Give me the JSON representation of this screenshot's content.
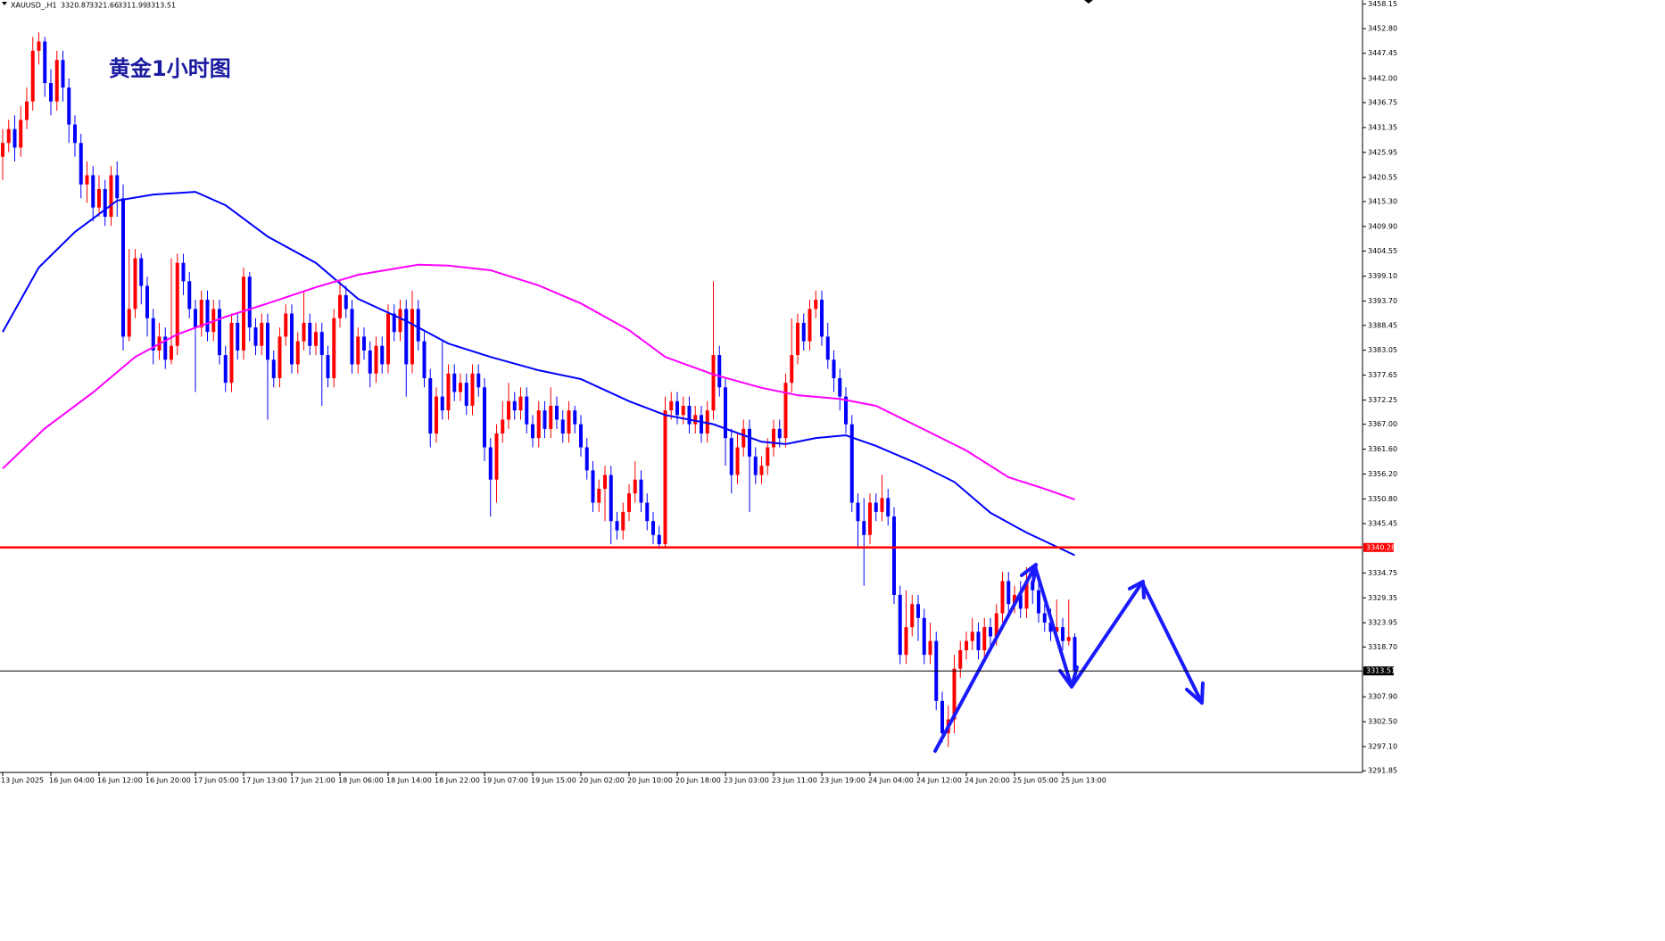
{
  "chart_data": {
    "type": "candlestick",
    "title": "黄金1小时图",
    "symbol": "XAUUSD_,H1",
    "bull_color": "#ff0000",
    "bear_color": "#0000ff",
    "categories": [
      "13 Jun 2025",
      null,
      null,
      null,
      null,
      null,
      null,
      null,
      "16 Jun 04:00",
      null,
      null,
      null,
      null,
      null,
      null,
      null,
      "16 Jun 12:00",
      null,
      null,
      null,
      null,
      null,
      null,
      null,
      "16 Jun 20:00",
      null,
      null,
      null,
      null,
      null,
      null,
      null,
      "17 Jun 05:00",
      null,
      null,
      null,
      null,
      null,
      null,
      null,
      "17 Jun 13:00",
      null,
      null,
      null,
      null,
      null,
      null,
      null,
      "17 Jun 21:00",
      null,
      null,
      null,
      null,
      null,
      null,
      null,
      "18 Jun 06:00",
      null,
      null,
      null,
      null,
      null,
      null,
      null,
      "18 Jun 14:00",
      null,
      null,
      null,
      null,
      null,
      null,
      null,
      "18 Jun 22:00",
      null,
      null,
      null,
      null,
      null,
      null,
      null,
      "19 Jun 07:00",
      null,
      null,
      null,
      null,
      null,
      null,
      null,
      "19 Jun 15:00",
      null,
      null,
      null,
      null,
      null,
      null,
      null,
      "20 Jun 02:00",
      null,
      null,
      null,
      null,
      null,
      null,
      null,
      "20 Jun 10:00",
      null,
      null,
      null,
      null,
      null,
      null,
      null,
      "20 Jun 18:00",
      null,
      null,
      null,
      null,
      null,
      null,
      null,
      "23 Jun 03:00",
      null,
      null,
      null,
      null,
      null,
      null,
      null,
      "23 Jun 11:00",
      null,
      null,
      null,
      null,
      null,
      null,
      null,
      "23 Jun 19:00",
      null,
      null,
      null,
      null,
      null,
      null,
      null,
      "24 Jun 04:00",
      null,
      null,
      null,
      null,
      null,
      null,
      null,
      "24 Jun 12:00",
      null,
      null,
      null,
      null,
      null,
      null,
      null,
      "24 Jun 20:00",
      null,
      null,
      null,
      null,
      null,
      null,
      null,
      "25 Jun 05:00",
      null,
      null,
      null,
      null,
      null,
      null,
      null,
      "25 Jun 13:00",
      null,
      null
    ],
    "open": [
      3425,
      3428,
      3431,
      3427,
      3433,
      3437,
      3448,
      3450,
      3441,
      3437,
      3446,
      3440,
      3432,
      3428,
      3419,
      3421,
      3414,
      3418,
      3412,
      3421,
      3416,
      3386,
      3392,
      3403,
      3397,
      3390,
      3383,
      3386,
      3381,
      3384,
      3402,
      3398,
      3392,
      3388,
      3394,
      3387,
      3392,
      3382,
      3376,
      3389,
      3383,
      3399,
      3388,
      3384,
      3389,
      3381,
      3377,
      3386,
      3391,
      3380,
      3385,
      3389,
      3384,
      3387,
      3382,
      3377,
      3390,
      3395,
      3392,
      3380,
      3386,
      3383,
      3378,
      3384,
      3380,
      3391,
      3387,
      3392,
      3380,
      3392,
      3385,
      3377,
      3365,
      3373,
      3370,
      3378,
      3374,
      3376,
      3371,
      3378,
      3375,
      3362,
      3355,
      3365,
      3368,
      3372,
      3370,
      3373,
      3367,
      3364,
      3370,
      3366,
      3371,
      3368,
      3365,
      3370,
      3367,
      3362,
      3357,
      3350,
      3353,
      3356,
      3346,
      3344,
      3348,
      3352,
      3355,
      3350,
      3346,
      3343,
      3341,
      3370,
      3372,
      3369,
      3371,
      3367,
      3369,
      3365,
      3370,
      3382,
      3375,
      3364,
      3356,
      3362,
      3366,
      3360,
      3356,
      3358,
      3362,
      3366,
      3364,
      3376,
      3382,
      3389,
      3385,
      3392,
      3394,
      3386,
      3381,
      3377,
      3373,
      3367,
      3350,
      3346,
      3343,
      3350,
      3348,
      3351,
      3347,
      3330,
      3317,
      3323,
      3328,
      3325,
      3317,
      3320,
      3307,
      3300,
      3303,
      3314,
      3318,
      3320,
      3322,
      3318,
      3323,
      3321,
      3326,
      3333,
      3328,
      3330,
      3327,
      3333,
      3331,
      3326,
      3324,
      3322,
      3323,
      3320,
      3320.87
    ],
    "high": [
      3431,
      3433,
      3434,
      3436,
      3440,
      3451,
      3452,
      3451,
      3444,
      3448,
      3448,
      3442,
      3434,
      3430,
      3424,
      3423,
      3421,
      3420,
      3423,
      3424,
      3419,
      3405,
      3405,
      3404,
      3399,
      3392,
      3389,
      3388,
      3403,
      3404,
      3404,
      3400,
      3394,
      3396,
      3396,
      3394,
      3394,
      3384,
      3391,
      3391,
      3401,
      3400,
      3390,
      3391,
      3391,
      3383,
      3388,
      3393,
      3393,
      3387,
      3396,
      3391,
      3389,
      3389,
      3384,
      3392,
      3398,
      3397,
      3394,
      3388,
      3388,
      3385,
      3386,
      3386,
      3393,
      3393,
      3394,
      3394,
      3396,
      3394,
      3387,
      3379,
      3375,
      3385,
      3380,
      3380,
      3378,
      3378,
      3380,
      3380,
      3377,
      3364,
      3367,
      3372,
      3376,
      3374,
      3375,
      3375,
      3369,
      3372,
      3372,
      3375,
      3373,
      3370,
      3372,
      3371,
      3369,
      3364,
      3359,
      3355,
      3358,
      3358,
      3348,
      3350,
      3354,
      3359,
      3357,
      3352,
      3348,
      3345,
      3373,
      3374,
      3374,
      3373,
      3373,
      3371,
      3371,
      3372,
      3398,
      3384,
      3377,
      3366,
      3365,
      3368,
      3368,
      3362,
      3360,
      3364,
      3368,
      3368,
      3378,
      3390,
      3391,
      3391,
      3394,
      3396,
      3396,
      3389,
      3383,
      3379,
      3375,
      3369,
      3352,
      3351,
      3352,
      3352,
      3356,
      3353,
      3349,
      3332,
      3331,
      3330,
      3330,
      3327,
      3324,
      3322,
      3309,
      3306,
      3317,
      3320,
      3322,
      3325,
      3324,
      3325,
      3325,
      3328,
      3335,
      3335,
      3332,
      3333,
      3336,
      3335,
      3333,
      3328,
      3327,
      3329,
      3325,
      3329,
      3321.66
    ],
    "low": [
      3420,
      3426,
      3424,
      3425,
      3431,
      3435,
      3445,
      3438,
      3434,
      3435,
      3437,
      3428,
      3425,
      3416,
      3415,
      3411,
      3412,
      3410,
      3410,
      3412,
      3383,
      3385,
      3390,
      3393,
      3386,
      3380,
      3381,
      3379,
      3380,
      3382,
      3395,
      3390,
      3374,
      3386,
      3385,
      3385,
      3380,
      3374,
      3374,
      3381,
      3381,
      3385,
      3382,
      3382,
      3368,
      3375,
      3375,
      3384,
      3378,
      3378,
      3383,
      3382,
      3382,
      3371,
      3375,
      3375,
      3388,
      3390,
      3378,
      3378,
      3381,
      3375,
      3376,
      3378,
      3378,
      3385,
      3385,
      3373,
      3378,
      3383,
      3375,
      3362,
      3363,
      3368,
      3368,
      3372,
      3372,
      3369,
      3369,
      3373,
      3359,
      3347,
      3350,
      3363,
      3366,
      3368,
      3368,
      3365,
      3362,
      3362,
      3364,
      3364,
      3366,
      3363,
      3363,
      3365,
      3360,
      3355,
      3348,
      3348,
      3346,
      3341,
      3342,
      3342,
      3346,
      3350,
      3348,
      3344,
      3341,
      3340,
      3340,
      3368,
      3367,
      3367,
      3365,
      3365,
      3363,
      3363,
      3368,
      3373,
      3358,
      3352,
      3354,
      3360,
      3348,
      3354,
      3354,
      3356,
      3360,
      3362,
      3362,
      3374,
      3380,
      3383,
      3383,
      3390,
      3384,
      3379,
      3374,
      3370,
      3365,
      3348,
      3340,
      3332,
      3341,
      3346,
      3346,
      3345,
      3328,
      3315,
      3315,
      3321,
      3320,
      3315,
      3315,
      3305,
      3298,
      3297,
      3300,
      3312,
      3316,
      3318,
      3316,
      3316,
      3319,
      3319,
      3324,
      3326,
      3326,
      3325,
      3325,
      3328,
      3324,
      3322,
      3320,
      3320,
      3318,
      3319,
      3311.99
    ],
    "close": [
      3428,
      3431,
      3427,
      3433,
      3437,
      3448,
      3450,
      3441,
      3437,
      3446,
      3440,
      3432,
      3428,
      3419,
      3421,
      3414,
      3418,
      3412,
      3421,
      3416,
      3386,
      3392,
      3403,
      3397,
      3390,
      3383,
      3386,
      3381,
      3384,
      3402,
      3398,
      3392,
      3388,
      3394,
      3387,
      3392,
      3382,
      3376,
      3389,
      3383,
      3399,
      3388,
      3384,
      3389,
      3381,
      3377,
      3386,
      3391,
      3380,
      3385,
      3389,
      3384,
      3387,
      3382,
      3377,
      3390,
      3395,
      3392,
      3380,
      3386,
      3383,
      3378,
      3384,
      3380,
      3391,
      3387,
      3392,
      3380,
      3392,
      3385,
      3377,
      3365,
      3373,
      3370,
      3378,
      3374,
      3376,
      3371,
      3378,
      3375,
      3362,
      3355,
      3365,
      3368,
      3372,
      3370,
      3373,
      3367,
      3364,
      3370,
      3366,
      3371,
      3368,
      3365,
      3370,
      3367,
      3362,
      3357,
      3350,
      3353,
      3356,
      3346,
      3344,
      3348,
      3352,
      3355,
      3350,
      3346,
      3343,
      3341,
      3370,
      3372,
      3369,
      3371,
      3367,
      3369,
      3365,
      3370,
      3382,
      3375,
      3364,
      3356,
      3362,
      3366,
      3360,
      3356,
      3358,
      3362,
      3366,
      3364,
      3376,
      3382,
      3389,
      3385,
      3392,
      3394,
      3386,
      3381,
      3377,
      3373,
      3367,
      3350,
      3346,
      3343,
      3350,
      3348,
      3351,
      3347,
      3330,
      3317,
      3323,
      3328,
      3325,
      3317,
      3320,
      3307,
      3300,
      3303,
      3314,
      3318,
      3320,
      3322,
      3318,
      3323,
      3321,
      3326,
      3333,
      3328,
      3330,
      3327,
      3333,
      3331,
      3326,
      3324,
      3322,
      3323,
      3320,
      3320.87,
      3313.51
    ],
    "lines": [
      {
        "color": "#0000ff",
        "x": [
          0,
          6,
          12,
          19,
          25,
          32,
          37,
          44,
          52,
          59,
          67,
          74,
          81,
          89,
          96,
          104,
          110,
          118,
          126,
          130,
          135,
          140,
          145,
          152,
          158,
          164,
          170,
          178
        ],
        "values": [
          3387,
          3401,
          3408.7,
          3415.5,
          3416.8,
          3417.4,
          3414.5,
          3407.7,
          3402,
          3394.2,
          3389.4,
          3384.5,
          3381.6,
          3378.7,
          3376.8,
          3372,
          3369,
          3367,
          3363.2,
          3362.7,
          3364,
          3364.6,
          3362.3,
          3358.4,
          3354.5,
          3347.8,
          3343.5,
          3338.6
        ]
      },
      {
        "color": "#ff00ff",
        "x": [
          0,
          7,
          15,
          22,
          29,
          37,
          44,
          52,
          59,
          69,
          74,
          81,
          89,
          96,
          104,
          110,
          118,
          126,
          132,
          139,
          145,
          152,
          160,
          167,
          173,
          178
        ],
        "values": [
          3357.4,
          3366.1,
          3373.9,
          3381.6,
          3386.5,
          3390.3,
          3393.2,
          3396.7,
          3399.4,
          3401.6,
          3401.4,
          3400.4,
          3397.1,
          3393.2,
          3387.4,
          3381.6,
          3377.8,
          3374.9,
          3373.3,
          3372.5,
          3371,
          3366.5,
          3361.3,
          3355.5,
          3353,
          3350.7
        ]
      }
    ],
    "hlines": [
      {
        "value": 3340.28,
        "color": "#ff0000",
        "label_bg": "#ff0000"
      },
      {
        "value": 3313.51,
        "color": "#000000",
        "label_bg": "#000000"
      }
    ],
    "ylim": [
      3291.5,
      3459
    ],
    "yticks": [
      3458.15,
      {
        "value": 3452.8,
        "label": "3452.80"
      },
      3447.45,
      {
        "value": 3442,
        "label": "3442.00"
      },
      3436.75,
      3431.35,
      3425.95,
      3420.55,
      {
        "value": 3415.3,
        "label": "3415.30"
      },
      {
        "value": 3409.9,
        "label": "3409.90"
      },
      3404.55,
      {
        "value": 3399.1,
        "label": "3399.10"
      },
      {
        "value": 3393.7,
        "label": "3393.70"
      },
      3388.45,
      3383.05,
      3377.65,
      3372.25,
      {
        "value": 3367,
        "label": "3367.00"
      },
      {
        "value": 3361.6,
        "label": "3361.60"
      },
      {
        "value": 3356.2,
        "label": "3356.20"
      },
      {
        "value": 3350.8,
        "label": "3350.80"
      },
      3345.45,
      3334.75,
      3329.35,
      3323.95,
      {
        "value": 3318.7,
        "label": "3318.70"
      },
      {
        "value": 3307.9,
        "label": "3307.90"
      },
      {
        "value": 3302.5,
        "label": "3302.50"
      },
      {
        "value": 3297.1,
        "label": "3297.10"
      },
      3291.85
    ]
  }
}
